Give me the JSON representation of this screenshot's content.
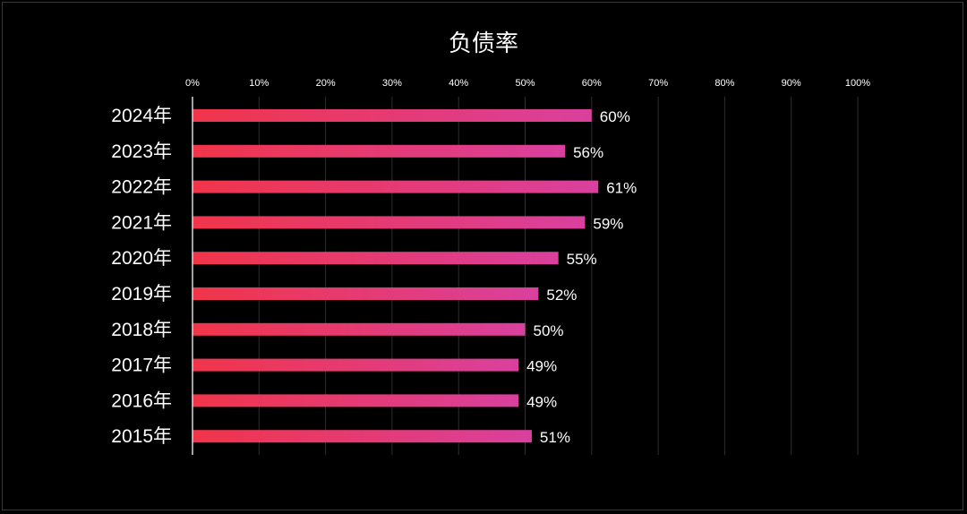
{
  "chart_data": {
    "type": "bar",
    "orientation": "horizontal",
    "title": "负债率",
    "xlabel": "",
    "ylabel": "",
    "categories": [
      "2024年",
      "2023年",
      "2022年",
      "2021年",
      "2020年",
      "2019年",
      "2018年",
      "2017年",
      "2016年",
      "2015年"
    ],
    "values": [
      60,
      56,
      61,
      59,
      55,
      52,
      50,
      49,
      49,
      51
    ],
    "data_labels": [
      "60%",
      "56%",
      "61%",
      "59%",
      "55%",
      "52%",
      "50%",
      "49%",
      "49%",
      "51%"
    ],
    "xlim": [
      0,
      100
    ],
    "x_ticks": [
      "0%",
      "10%",
      "20%",
      "30%",
      "40%",
      "50%",
      "60%",
      "70%",
      "80%",
      "90%",
      "100%"
    ],
    "x_axis_position": "top",
    "grid": true,
    "legend": "none",
    "colors": {
      "bar_start": "#f0354a",
      "bar_end": "#d9409e",
      "background": "#000000",
      "text": "#ffffff",
      "grid": "#2e2e2e"
    }
  }
}
